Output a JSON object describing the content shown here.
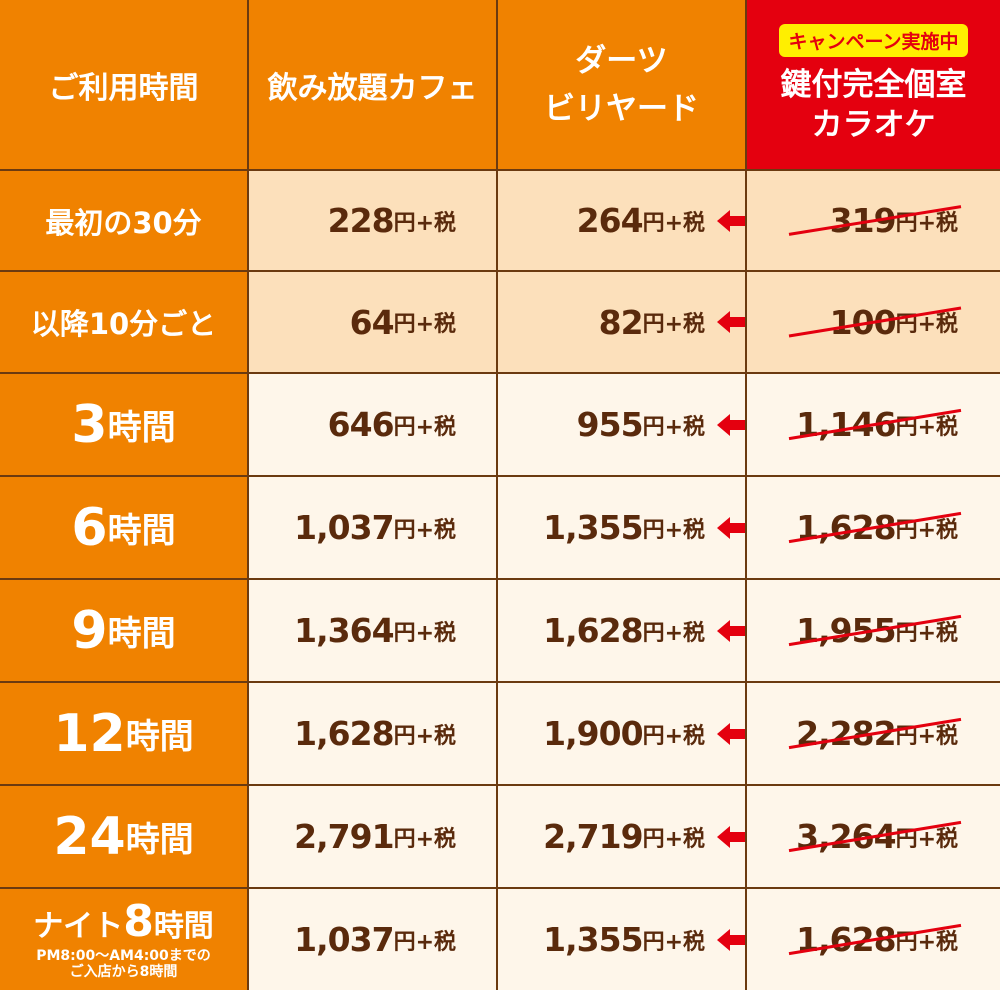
{
  "header": {
    "col1": "ご利用時間",
    "col2": "飲み放題カフェ",
    "col3_line1": "ダーツ",
    "col3_line2": "ビリヤード",
    "campaign_badge": "キャンペーン実施中",
    "col4_line1": "鍵付完全個室",
    "col4_line2": "カラオケ"
  },
  "price_suffix": "円+税",
  "rows": [
    {
      "label": "最初の30分",
      "cafe": "228",
      "darts": "264",
      "karaoke": "319"
    },
    {
      "label": "以降10分ごと",
      "cafe": "64",
      "darts": "82",
      "karaoke": "100"
    },
    {
      "label_num": "3",
      "label_unit": "時間",
      "cafe": "646",
      "darts": "955",
      "karaoke": "1,146"
    },
    {
      "label_num": "6",
      "label_unit": "時間",
      "cafe": "1,037",
      "darts": "1,355",
      "karaoke": "1,628"
    },
    {
      "label_num": "9",
      "label_unit": "時間",
      "cafe": "1,364",
      "darts": "1,628",
      "karaoke": "1,955"
    },
    {
      "label_num": "12",
      "label_unit": "時間",
      "cafe": "1,628",
      "darts": "1,900",
      "karaoke": "2,282"
    },
    {
      "label_num": "24",
      "label_unit": "時間",
      "cafe": "2,791",
      "darts": "2,719",
      "karaoke": "3,264"
    },
    {
      "label_pre": "ナイト",
      "label_num": "8",
      "label_unit": "時間",
      "label_note1": "PM8:00～AM4:00までの",
      "label_note2": "ご入店から8時間",
      "cafe": "1,037",
      "darts": "1,355",
      "karaoke": "1,628"
    }
  ],
  "colors": {
    "orange": "#f08200",
    "red": "#e4000f",
    "yellow": "#ffef00",
    "brown": "#5a2a0c",
    "light_row": "#fce0bb",
    "pale_row": "#fef6ea"
  },
  "icons": [
    "arrow-left-icon",
    "strikethrough-line"
  ]
}
